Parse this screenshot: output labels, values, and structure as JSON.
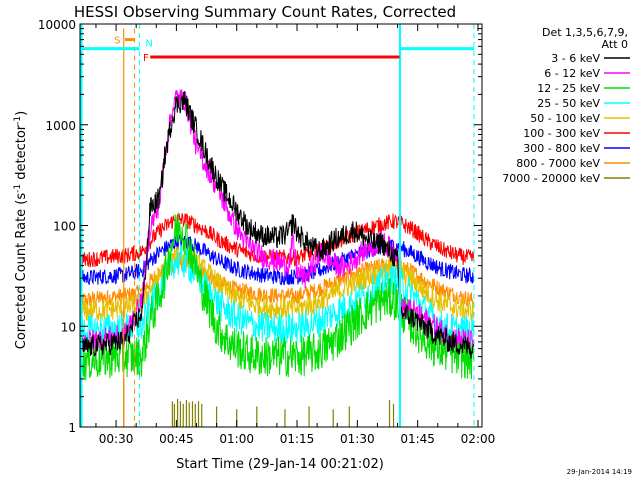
{
  "chart_data": {
    "type": "line",
    "title": "HESSI Observing Summary Count Rates, Corrected",
    "xlabel": "Start Time (29-Jan-14 00:21:02)",
    "ylabel_main": "Corrected Count Rate (s",
    "ylabel_sup1": "-1",
    "ylabel_mid": " detector",
    "ylabel_sup2": "-1",
    "ylabel_end": ")",
    "x_minutes_range": [
      21.03,
      121
    ],
    "y_range": [
      1,
      10000
    ],
    "y_scale": "log",
    "x_ticks": [
      {
        "m": 30,
        "label": "00:30"
      },
      {
        "m": 45,
        "label": "00:45"
      },
      {
        "m": 60,
        "label": "01:00"
      },
      {
        "m": 75,
        "label": "01:15"
      },
      {
        "m": 90,
        "label": "01:30"
      },
      {
        "m": 105,
        "label": "01:45"
      },
      {
        "m": 120,
        "label": "02:00"
      }
    ],
    "y_ticks": [
      {
        "v": 1,
        "label": "1"
      },
      {
        "v": 10,
        "label": "10"
      },
      {
        "v": 100,
        "label": "100"
      },
      {
        "v": 1000,
        "label": "1000"
      },
      {
        "v": 10000,
        "label": "10000"
      }
    ],
    "legend": {
      "header1": "Det 1,3,5,6,7,9,",
      "header2": "Att 0",
      "placement": "right",
      "entries": [
        {
          "label": "3 - 6 keV",
          "color": "#000000"
        },
        {
          "label": "6 - 12 keV",
          "color": "#ff00ff"
        },
        {
          "label": "12 - 25 keV",
          "color": "#00dd00"
        },
        {
          "label": "25 - 50 keV",
          "color": "#00ffff"
        },
        {
          "label": "50 - 100 keV",
          "color": "#e6c000"
        },
        {
          "label": "100 - 300 keV",
          "color": "#ff0000"
        },
        {
          "label": "300 - 800 keV",
          "color": "#0000ff"
        },
        {
          "label": "800 - 7000 keV",
          "color": "#ff8c00"
        },
        {
          "label": "7000 - 20000 keV",
          "color": "#808000"
        }
      ]
    },
    "annotations": {
      "saa_label": "S",
      "flare_label": "F",
      "night_label": "N",
      "saa_color": "#ff8c00",
      "flare_color": "#ff0000",
      "night_color": "#00ffff",
      "saa_bar_minutes": [
        32.2,
        34.6
      ],
      "saa_bar_value": 7000,
      "flare_bar_minutes": [
        38.5,
        100.5
      ],
      "flare_bar_value": 4700,
      "night_bars_minutes": [
        [
          21.03,
          35.8
        ],
        [
          100.6,
          119
        ]
      ],
      "night_bar_value": 5700,
      "night_solid_minutes": [
        21.4,
        100.6
      ],
      "night_dashed_minutes": [
        35.8,
        119
      ],
      "saa_solid_minutes": [
        31.9
      ],
      "saa_dashed_minutes": [
        34.6
      ]
    },
    "series": [
      {
        "name": "3 - 6 keV",
        "color": "#000000",
        "noise": 0.05,
        "points": [
          [
            21.03,
            6
          ],
          [
            31,
            7
          ],
          [
            31.9,
            7
          ],
          [
            36.5,
            14
          ],
          [
            38.5,
            150
          ],
          [
            40,
            170
          ],
          [
            41,
            200
          ],
          [
            42,
            450
          ],
          [
            44,
            1200
          ],
          [
            45,
            1600
          ],
          [
            47,
            1750
          ],
          [
            48,
            1400
          ],
          [
            50,
            900
          ],
          [
            53,
            450
          ],
          [
            56,
            250
          ],
          [
            60,
            140
          ],
          [
            63,
            95
          ],
          [
            66,
            80
          ],
          [
            70,
            75
          ],
          [
            73,
            85
          ],
          [
            74,
            110
          ],
          [
            75,
            85
          ],
          [
            77,
            70
          ],
          [
            79,
            60
          ],
          [
            81,
            55
          ],
          [
            83,
            65
          ],
          [
            85,
            75
          ],
          [
            87,
            80
          ],
          [
            89,
            90
          ],
          [
            91,
            80
          ],
          [
            93,
            70
          ],
          [
            95,
            65
          ],
          [
            96,
            70
          ],
          [
            97,
            60
          ],
          [
            98,
            55
          ],
          [
            100,
            45
          ],
          [
            100.6,
            14
          ],
          [
            104,
            12
          ],
          [
            108,
            9
          ],
          [
            113,
            7
          ],
          [
            119,
            6
          ]
        ]
      },
      {
        "name": "6 - 12 keV",
        "color": "#ff00ff",
        "noise": 0.05,
        "points": [
          [
            21.03,
            7
          ],
          [
            31,
            8
          ],
          [
            31.9,
            8
          ],
          [
            36.5,
            18
          ],
          [
            38.5,
            100
          ],
          [
            40,
            130
          ],
          [
            41,
            190
          ],
          [
            42,
            500
          ],
          [
            44,
            1400
          ],
          [
            45,
            1900
          ],
          [
            46,
            1800
          ],
          [
            47,
            1800
          ],
          [
            48,
            1300
          ],
          [
            50,
            600
          ],
          [
            53,
            350
          ],
          [
            56,
            200
          ],
          [
            59,
            110
          ],
          [
            62,
            70
          ],
          [
            65,
            55
          ],
          [
            67,
            48
          ],
          [
            70,
            44
          ],
          [
            72,
            40
          ],
          [
            73,
            42
          ],
          [
            74,
            70
          ],
          [
            75,
            35
          ],
          [
            77,
            30
          ],
          [
            79,
            40
          ],
          [
            81,
            55
          ],
          [
            83,
            45
          ],
          [
            85,
            40
          ],
          [
            87,
            38
          ],
          [
            89,
            45
          ],
          [
            91,
            55
          ],
          [
            93,
            60
          ],
          [
            95,
            65
          ],
          [
            96,
            70
          ],
          [
            98,
            60
          ],
          [
            100,
            55
          ],
          [
            100.6,
            16
          ],
          [
            104,
            14
          ],
          [
            108,
            11
          ],
          [
            113,
            8
          ],
          [
            119,
            7
          ]
        ]
      },
      {
        "name": "12 - 25 keV",
        "color": "#00dd00",
        "noise": 0.09,
        "points": [
          [
            21.03,
            4.5
          ],
          [
            31,
            5
          ],
          [
            31.9,
            5
          ],
          [
            36.5,
            5
          ],
          [
            38.5,
            12
          ],
          [
            40,
            16
          ],
          [
            42,
            30
          ],
          [
            44,
            70
          ],
          [
            45,
            90
          ],
          [
            46,
            100
          ],
          [
            47,
            85
          ],
          [
            49,
            50
          ],
          [
            52,
            20
          ],
          [
            55,
            10
          ],
          [
            58,
            7
          ],
          [
            62,
            5.5
          ],
          [
            66,
            5
          ],
          [
            72,
            5
          ],
          [
            76,
            5
          ],
          [
            80,
            5.5
          ],
          [
            84,
            7
          ],
          [
            88,
            10
          ],
          [
            92,
            14
          ],
          [
            96,
            18
          ],
          [
            99,
            19
          ],
          [
            100.6,
            15
          ],
          [
            103,
            11
          ],
          [
            106,
            8
          ],
          [
            110,
            6
          ],
          [
            115,
            5
          ],
          [
            119,
            4.5
          ]
        ]
      },
      {
        "name": "25 - 50 keV",
        "color": "#00ffff",
        "noise": 0.07,
        "points": [
          [
            21.03,
            9
          ],
          [
            31,
            9.5
          ],
          [
            31.9,
            9.5
          ],
          [
            36.5,
            10
          ],
          [
            38.5,
            16
          ],
          [
            40,
            20
          ],
          [
            42,
            30
          ],
          [
            44,
            42
          ],
          [
            46,
            45
          ],
          [
            48,
            40
          ],
          [
            50,
            32
          ],
          [
            53,
            22
          ],
          [
            56,
            16
          ],
          [
            60,
            12
          ],
          [
            65,
            10
          ],
          [
            70,
            9.5
          ],
          [
            75,
            9.5
          ],
          [
            80,
            11
          ],
          [
            85,
            14
          ],
          [
            90,
            18
          ],
          [
            95,
            25
          ],
          [
            99,
            30
          ],
          [
            101,
            26
          ],
          [
            104,
            20
          ],
          [
            107,
            14
          ],
          [
            111,
            10
          ],
          [
            115,
            9
          ],
          [
            119,
            9
          ]
        ]
      },
      {
        "name": "50 - 100 keV",
        "color": "#e6c000",
        "noise": 0.05,
        "points": [
          [
            21.03,
            14
          ],
          [
            31,
            15
          ],
          [
            31.9,
            15
          ],
          [
            36.5,
            17
          ],
          [
            38.5,
            24
          ],
          [
            41,
            32
          ],
          [
            44,
            46
          ],
          [
            46,
            50
          ],
          [
            48,
            48
          ],
          [
            50,
            42
          ],
          [
            53,
            33
          ],
          [
            56,
            25
          ],
          [
            60,
            19
          ],
          [
            65,
            16
          ],
          [
            70,
            15
          ],
          [
            75,
            15
          ],
          [
            80,
            17
          ],
          [
            85,
            22
          ],
          [
            90,
            28
          ],
          [
            95,
            34
          ],
          [
            99,
            37
          ],
          [
            101,
            34
          ],
          [
            104,
            28
          ],
          [
            107,
            22
          ],
          [
            111,
            17
          ],
          [
            115,
            15
          ],
          [
            119,
            14
          ]
        ]
      },
      {
        "name": "100 - 300 keV",
        "color": "#ff0000",
        "noise": 0.035,
        "points": [
          [
            21.03,
            45
          ],
          [
            31,
            50
          ],
          [
            31.9,
            50
          ],
          [
            36.5,
            55
          ],
          [
            38.5,
            70
          ],
          [
            41,
            90
          ],
          [
            44,
            110
          ],
          [
            46,
            115
          ],
          [
            48,
            110
          ],
          [
            50,
            100
          ],
          [
            53,
            85
          ],
          [
            56,
            70
          ],
          [
            60,
            58
          ],
          [
            65,
            50
          ],
          [
            70,
            48
          ],
          [
            75,
            48
          ],
          [
            80,
            55
          ],
          [
            85,
            68
          ],
          [
            90,
            85
          ],
          [
            95,
            100
          ],
          [
            99,
            110
          ],
          [
            101,
            105
          ],
          [
            104,
            90
          ],
          [
            107,
            72
          ],
          [
            111,
            58
          ],
          [
            115,
            50
          ],
          [
            119,
            47
          ]
        ]
      },
      {
        "name": "300 - 800 keV",
        "color": "#0000ff",
        "noise": 0.035,
        "points": [
          [
            21.03,
            30
          ],
          [
            31,
            32
          ],
          [
            31.9,
            32
          ],
          [
            36.5,
            36
          ],
          [
            38.5,
            45
          ],
          [
            41,
            55
          ],
          [
            44,
            66
          ],
          [
            46,
            70
          ],
          [
            48,
            68
          ],
          [
            50,
            62
          ],
          [
            53,
            52
          ],
          [
            56,
            44
          ],
          [
            60,
            37
          ],
          [
            65,
            33
          ],
          [
            70,
            31
          ],
          [
            75,
            31
          ],
          [
            80,
            35
          ],
          [
            85,
            43
          ],
          [
            90,
            52
          ],
          [
            95,
            60
          ],
          [
            99,
            63
          ],
          [
            101,
            60
          ],
          [
            104,
            52
          ],
          [
            107,
            44
          ],
          [
            111,
            37
          ],
          [
            115,
            33
          ],
          [
            119,
            31
          ]
        ]
      },
      {
        "name": "800 - 7000 keV",
        "color": "#ff8c00",
        "noise": 0.035,
        "points": [
          [
            21.03,
            18
          ],
          [
            31,
            20
          ],
          [
            31.9,
            20
          ],
          [
            36.5,
            22
          ],
          [
            38.5,
            28
          ],
          [
            41,
            34
          ],
          [
            44,
            40
          ],
          [
            46,
            42
          ],
          [
            48,
            41
          ],
          [
            50,
            38
          ],
          [
            53,
            32
          ],
          [
            56,
            27
          ],
          [
            60,
            23
          ],
          [
            65,
            21
          ],
          [
            70,
            20
          ],
          [
            75,
            20
          ],
          [
            80,
            23
          ],
          [
            85,
            28
          ],
          [
            90,
            34
          ],
          [
            95,
            39
          ],
          [
            99,
            42
          ],
          [
            101,
            40
          ],
          [
            104,
            34
          ],
          [
            107,
            28
          ],
          [
            111,
            23
          ],
          [
            115,
            20
          ],
          [
            119,
            18
          ]
        ]
      }
    ],
    "spikes_7000_20000": [
      {
        "m": 31.9,
        "v": 3
      },
      {
        "m": 44,
        "v": 1.8
      },
      {
        "m": 44.5,
        "v": 1.7
      },
      {
        "m": 45.3,
        "v": 1.9
      },
      {
        "m": 46,
        "v": 1.8
      },
      {
        "m": 46.7,
        "v": 1.7
      },
      {
        "m": 47.5,
        "v": 1.85
      },
      {
        "m": 48.2,
        "v": 1.75
      },
      {
        "m": 49,
        "v": 1.8
      },
      {
        "m": 49.7,
        "v": 1.7
      },
      {
        "m": 50.5,
        "v": 1.8
      },
      {
        "m": 51.3,
        "v": 1.7
      },
      {
        "m": 55,
        "v": 1.6
      },
      {
        "m": 60,
        "v": 1.5
      },
      {
        "m": 65,
        "v": 1.6
      },
      {
        "m": 72,
        "v": 1.5
      },
      {
        "m": 78,
        "v": 1.6
      },
      {
        "m": 84,
        "v": 1.5
      },
      {
        "m": 88,
        "v": 1.6
      },
      {
        "m": 98,
        "v": 1.85
      },
      {
        "m": 99,
        "v": 1.7
      }
    ],
    "timestamp": "29-Jan-2014 14:19"
  }
}
